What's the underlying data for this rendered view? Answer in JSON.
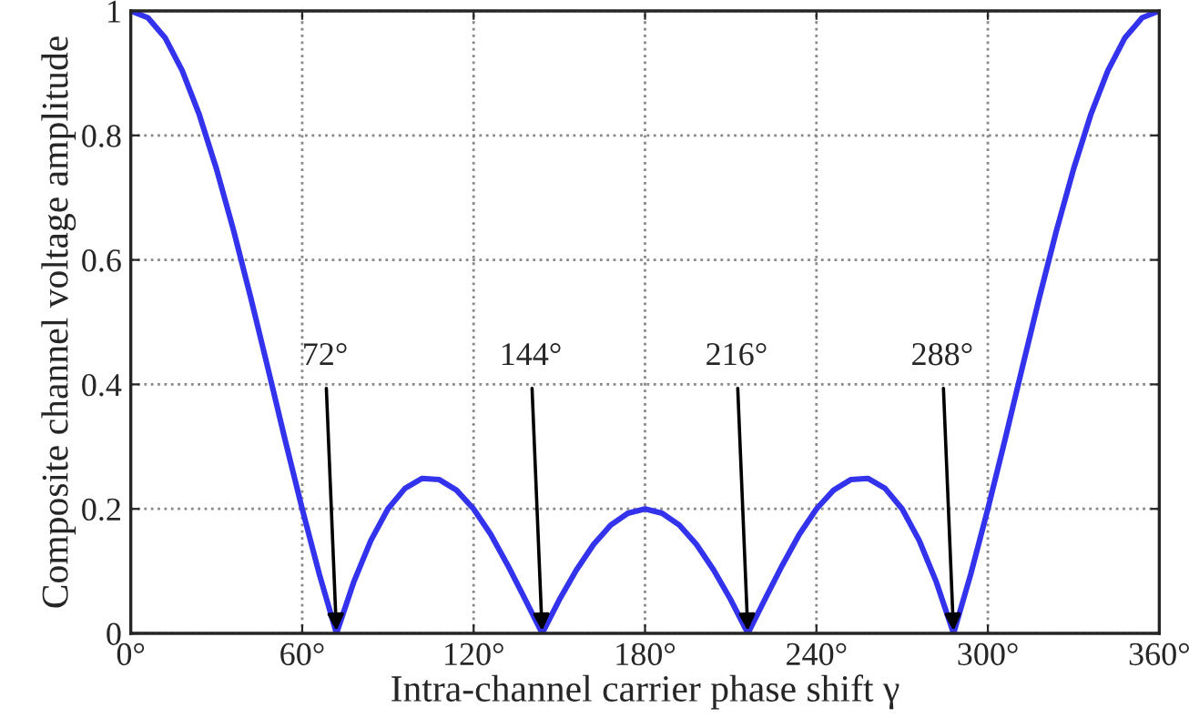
{
  "chart_data": {
    "type": "line",
    "xlabel": "Intra-channel carrier phase shift γ",
    "ylabel": "Composite channel voltage amplitude",
    "x": [
      0,
      6,
      12,
      18,
      24,
      30,
      36,
      42,
      48,
      54,
      60,
      66,
      72,
      78,
      84,
      90,
      96,
      102,
      108,
      114,
      120,
      126,
      132,
      138,
      144,
      150,
      156,
      162,
      168,
      174,
      180,
      186,
      192,
      198,
      204,
      210,
      216,
      222,
      228,
      234,
      240,
      246,
      252,
      258,
      264,
      270,
      276,
      282,
      288,
      294,
      300,
      306,
      312,
      318,
      324,
      330,
      336,
      342,
      348,
      354,
      360
    ],
    "series": [
      {
        "color": "#3333ee",
        "values": [
          1,
          0.989,
          0.957,
          0.904,
          0.833,
          0.746,
          0.647,
          0.539,
          0.426,
          0.311,
          0.2,
          0.095,
          0,
          0.082,
          0.149,
          0.2,
          0.233,
          0.249,
          0.247,
          0.23,
          0.2,
          0.159,
          0.109,
          0.055,
          0,
          0.054,
          0.102,
          0.143,
          0.174,
          0.193,
          0.2,
          0.193,
          0.174,
          0.143,
          0.102,
          0.054,
          0,
          0.055,
          0.109,
          0.159,
          0.2,
          0.23,
          0.247,
          0.249,
          0.233,
          0.2,
          0.149,
          0.082,
          0,
          0.095,
          0.2,
          0.311,
          0.426,
          0.539,
          0.647,
          0.746,
          0.833,
          0.904,
          0.957,
          0.989,
          1
        ]
      }
    ],
    "xlim": [
      0,
      360
    ],
    "ylim": [
      0,
      1
    ],
    "xticks": [
      {
        "value": 0,
        "label": "0°"
      },
      {
        "value": 60,
        "label": "60°"
      },
      {
        "value": 120,
        "label": "120°"
      },
      {
        "value": 180,
        "label": "180°"
      },
      {
        "value": 240,
        "label": "240°"
      },
      {
        "value": 300,
        "label": "300°"
      },
      {
        "value": 360,
        "label": "360°"
      }
    ],
    "yticks": [
      0,
      0.2,
      0.4,
      0.6,
      0.8,
      1
    ],
    "grid": true,
    "line_style": "solid",
    "annotations": [
      {
        "text": "72°",
        "x": 72,
        "y": 0
      },
      {
        "text": "144°",
        "x": 144,
        "y": 0
      },
      {
        "text": "216°",
        "x": 216,
        "y": 0
      },
      {
        "text": "288°",
        "x": 288,
        "y": 0
      }
    ]
  }
}
